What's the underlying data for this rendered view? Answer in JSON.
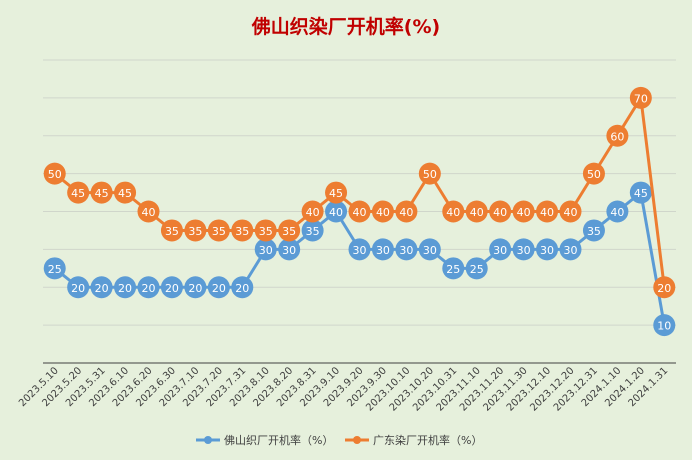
{
  "chart_data": {
    "type": "line",
    "title": "佛山织染厂开机率(%)",
    "categories": [
      "2023.5.10",
      "2023.5.20",
      "2023.5.31",
      "2023.6.10",
      "2023.6.20",
      "2023.6.30",
      "2023.7.10",
      "2023.7.20",
      "2023.7.31",
      "2023.8.10",
      "2023.8.20",
      "2023.8.31",
      "2023.9.10",
      "2023.9.20",
      "2023.9.30",
      "2023.10.10",
      "2023.10.20",
      "2023.10.31",
      "2023.11.10",
      "2023.11.20",
      "2023.11.30",
      "2023.12.10",
      "2023.12.20",
      "2023.12.31",
      "2024.1.10",
      "2024.1.20",
      "2024.1.31"
    ],
    "series": [
      {
        "name": "佛山织厂开机率（%）",
        "color": "#5b9bd5",
        "values": [
          25,
          20,
          20,
          20,
          20,
          20,
          20,
          20,
          20,
          30,
          30,
          35,
          40,
          30,
          30,
          30,
          30,
          25,
          25,
          30,
          30,
          30,
          30,
          35,
          40,
          45,
          10
        ]
      },
      {
        "name": "广东染厂开机率（%）",
        "color": "#ed7d31",
        "values": [
          50,
          45,
          45,
          45,
          40,
          35,
          35,
          35,
          35,
          35,
          35,
          40,
          45,
          40,
          40,
          40,
          50,
          40,
          40,
          40,
          40,
          40,
          40,
          50,
          60,
          70,
          20
        ]
      }
    ],
    "ylim": [
      0,
      80
    ],
    "grid": true,
    "legend": "bottom",
    "title_color": "#c00000"
  }
}
